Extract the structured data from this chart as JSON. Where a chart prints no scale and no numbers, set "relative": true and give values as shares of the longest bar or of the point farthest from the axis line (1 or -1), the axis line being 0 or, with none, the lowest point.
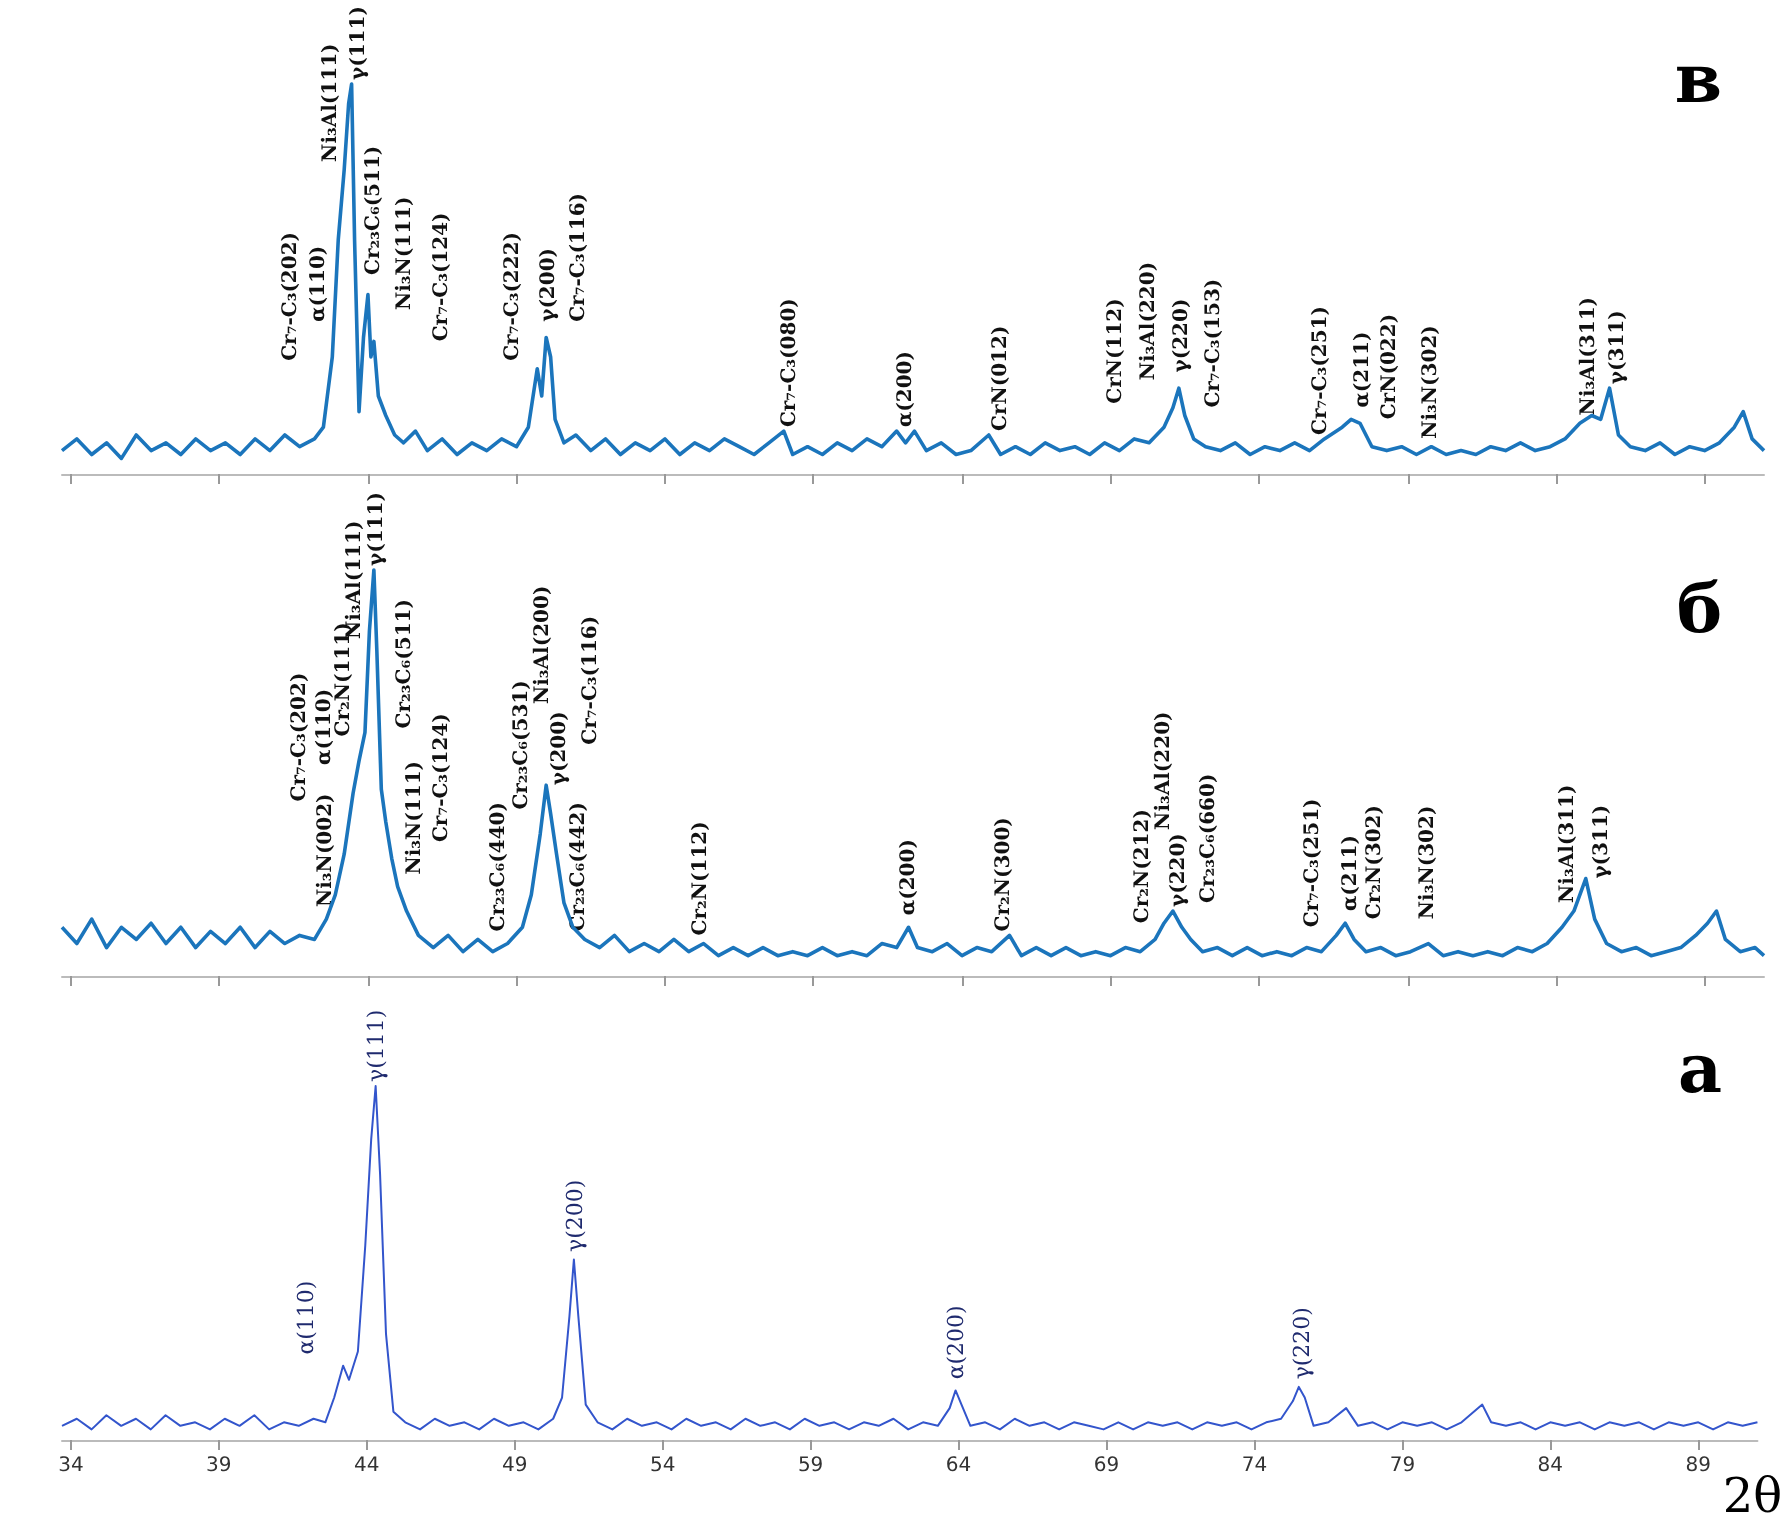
{
  "chart_data": [
    {
      "type": "line",
      "title": "в",
      "relative": true,
      "marker": "none",
      "line_style": "solid",
      "tick_labels": false,
      "xlim": [
        33.7,
        91
      ],
      "xticks": [
        34,
        39,
        44,
        49,
        54,
        59,
        64,
        69,
        74,
        79,
        84,
        89
      ],
      "series": [
        {
          "color": "#1b75bc",
          "x": [
            33.7,
            34.2,
            34.7,
            35.2,
            35.7,
            36.2,
            36.7,
            37.2,
            37.7,
            38.2,
            38.7,
            39.2,
            39.7,
            40.2,
            40.7,
            41.2,
            41.7,
            42.2,
            42.5,
            42.8,
            43.0,
            43.2,
            43.35,
            43.45,
            43.55,
            43.7,
            43.85,
            44.0,
            44.1,
            44.2,
            44.35,
            44.6,
            44.9,
            45.2,
            45.6,
            46.0,
            46.5,
            47.0,
            47.5,
            48.0,
            48.5,
            49.0,
            49.4,
            49.7,
            49.85,
            50.0,
            50.15,
            50.3,
            50.6,
            51.0,
            51.5,
            52.0,
            52.5,
            53.0,
            53.5,
            54.0,
            54.5,
            55.0,
            55.5,
            56.0,
            56.5,
            57.0,
            57.5,
            58.0,
            58.3,
            58.8,
            59.3,
            59.8,
            60.3,
            60.8,
            61.3,
            61.8,
            62.1,
            62.4,
            62.8,
            63.3,
            63.8,
            64.3,
            64.9,
            65.3,
            65.8,
            66.3,
            66.8,
            67.3,
            67.8,
            68.3,
            68.8,
            69.3,
            69.8,
            70.3,
            70.8,
            71.1,
            71.3,
            71.5,
            71.8,
            72.2,
            72.7,
            73.2,
            73.7,
            74.2,
            74.7,
            75.2,
            75.7,
            76.2,
            76.8,
            77.1,
            77.4,
            77.8,
            78.3,
            78.8,
            79.3,
            79.8,
            80.3,
            80.8,
            81.3,
            81.8,
            82.3,
            82.8,
            83.3,
            83.8,
            84.3,
            84.8,
            85.2,
            85.5,
            85.8,
            86.1,
            86.5,
            87.0,
            87.5,
            88.0,
            88.5,
            89.0,
            89.5,
            90.0,
            90.3,
            90.6,
            91.0
          ],
          "values": [
            0.06,
            0.09,
            0.05,
            0.08,
            0.04,
            0.1,
            0.06,
            0.08,
            0.05,
            0.09,
            0.06,
            0.08,
            0.05,
            0.09,
            0.06,
            0.1,
            0.07,
            0.09,
            0.12,
            0.3,
            0.6,
            0.78,
            0.95,
            1.0,
            0.6,
            0.16,
            0.35,
            0.46,
            0.3,
            0.34,
            0.2,
            0.15,
            0.1,
            0.08,
            0.11,
            0.06,
            0.09,
            0.05,
            0.08,
            0.06,
            0.09,
            0.07,
            0.12,
            0.27,
            0.2,
            0.35,
            0.3,
            0.14,
            0.08,
            0.1,
            0.06,
            0.09,
            0.05,
            0.08,
            0.06,
            0.09,
            0.05,
            0.08,
            0.06,
            0.09,
            0.07,
            0.05,
            0.08,
            0.11,
            0.05,
            0.07,
            0.05,
            0.08,
            0.06,
            0.09,
            0.07,
            0.11,
            0.08,
            0.11,
            0.06,
            0.08,
            0.05,
            0.06,
            0.1,
            0.05,
            0.07,
            0.05,
            0.08,
            0.06,
            0.07,
            0.05,
            0.08,
            0.06,
            0.09,
            0.08,
            0.12,
            0.17,
            0.22,
            0.15,
            0.09,
            0.07,
            0.06,
            0.08,
            0.05,
            0.07,
            0.06,
            0.08,
            0.06,
            0.09,
            0.12,
            0.14,
            0.13,
            0.07,
            0.06,
            0.07,
            0.05,
            0.07,
            0.05,
            0.06,
            0.05,
            0.07,
            0.06,
            0.08,
            0.06,
            0.07,
            0.09,
            0.13,
            0.15,
            0.14,
            0.22,
            0.1,
            0.07,
            0.06,
            0.08,
            0.05,
            0.07,
            0.06,
            0.08,
            0.12,
            0.16,
            0.09,
            0.06
          ]
        }
      ],
      "annotations": [
        "Cr₇-C₃(202)",
        "α(110)",
        "Ni₃Al(111)",
        "γ(111)",
        "Cr₂₃C₆(511)",
        "Ni₃N(111)",
        "Cr₇-C₃(124)",
        "Cr₇-C₃(222)",
        "γ(200)",
        "Cr₇-C₃(116)",
        "Cr₇-C₃(080)",
        "α(200)",
        "CrN(012)",
        "CrN(112)",
        "Ni₃Al(220)",
        "γ(220)",
        "Cr₇-C₃(153)",
        "Cr₇-C₃(251)",
        "α(211)",
        "CrN(022)",
        "Ni₃N(302)",
        "Ni₃Al(311)",
        "γ(311)"
      ]
    },
    {
      "type": "line",
      "title": "б",
      "relative": true,
      "marker": "none",
      "line_style": "solid",
      "tick_labels": false,
      "xlim": [
        33.7,
        91
      ],
      "xticks": [
        34,
        39,
        44,
        49,
        54,
        59,
        64,
        69,
        74,
        79,
        84,
        89
      ],
      "series": [
        {
          "color": "#1b75bc",
          "x": [
            33.7,
            34.2,
            34.7,
            35.2,
            35.7,
            36.2,
            36.7,
            37.2,
            37.7,
            38.2,
            38.7,
            39.2,
            39.7,
            40.2,
            40.7,
            41.2,
            41.7,
            42.2,
            42.6,
            42.9,
            43.2,
            43.5,
            43.7,
            43.9,
            44.05,
            44.2,
            44.3,
            44.45,
            44.6,
            44.8,
            45.0,
            45.3,
            45.7,
            46.2,
            46.7,
            47.2,
            47.7,
            48.2,
            48.7,
            49.2,
            49.5,
            49.8,
            50.0,
            50.15,
            50.35,
            50.6,
            50.9,
            51.3,
            51.8,
            52.3,
            52.8,
            53.3,
            53.8,
            54.3,
            54.8,
            55.3,
            55.8,
            56.3,
            56.8,
            57.3,
            57.8,
            58.3,
            58.8,
            59.3,
            59.8,
            60.3,
            60.8,
            61.3,
            61.8,
            62.2,
            62.5,
            63.0,
            63.5,
            64.0,
            64.5,
            65.0,
            65.6,
            66.0,
            66.5,
            67.0,
            67.5,
            68.0,
            68.5,
            69.0,
            69.5,
            70.0,
            70.5,
            70.8,
            71.1,
            71.4,
            71.7,
            72.1,
            72.6,
            73.1,
            73.6,
            74.1,
            74.6,
            75.1,
            75.6,
            76.1,
            76.6,
            76.9,
            77.2,
            77.6,
            78.1,
            78.6,
            79.1,
            79.7,
            80.2,
            80.7,
            81.2,
            81.7,
            82.2,
            82.7,
            83.2,
            83.7,
            84.2,
            84.6,
            85.0,
            85.3,
            85.7,
            86.2,
            86.7,
            87.2,
            87.7,
            88.2,
            88.7,
            89.1,
            89.4,
            89.7,
            90.2,
            90.7,
            91.0
          ],
          "values": [
            0.12,
            0.08,
            0.14,
            0.07,
            0.12,
            0.09,
            0.13,
            0.08,
            0.12,
            0.07,
            0.11,
            0.08,
            0.12,
            0.07,
            0.11,
            0.08,
            0.1,
            0.09,
            0.14,
            0.2,
            0.3,
            0.45,
            0.53,
            0.6,
            0.85,
            1.0,
            0.8,
            0.46,
            0.38,
            0.29,
            0.22,
            0.16,
            0.1,
            0.07,
            0.1,
            0.06,
            0.09,
            0.06,
            0.08,
            0.12,
            0.2,
            0.35,
            0.47,
            0.4,
            0.3,
            0.18,
            0.12,
            0.09,
            0.07,
            0.1,
            0.06,
            0.08,
            0.06,
            0.09,
            0.06,
            0.08,
            0.05,
            0.07,
            0.05,
            0.07,
            0.05,
            0.06,
            0.05,
            0.07,
            0.05,
            0.06,
            0.05,
            0.08,
            0.07,
            0.12,
            0.07,
            0.06,
            0.08,
            0.05,
            0.07,
            0.06,
            0.1,
            0.05,
            0.07,
            0.05,
            0.07,
            0.05,
            0.06,
            0.05,
            0.07,
            0.06,
            0.09,
            0.13,
            0.16,
            0.12,
            0.09,
            0.06,
            0.07,
            0.05,
            0.07,
            0.05,
            0.06,
            0.05,
            0.07,
            0.06,
            0.1,
            0.13,
            0.09,
            0.06,
            0.07,
            0.05,
            0.06,
            0.08,
            0.05,
            0.06,
            0.05,
            0.06,
            0.05,
            0.07,
            0.06,
            0.08,
            0.12,
            0.16,
            0.24,
            0.14,
            0.08,
            0.06,
            0.07,
            0.05,
            0.06,
            0.07,
            0.1,
            0.13,
            0.16,
            0.09,
            0.06,
            0.07,
            0.05
          ]
        }
      ],
      "annotations": [
        "Ni₃N(002)",
        "Cr₇-C₃(202)",
        "α(110)",
        "Cr₂N(111)",
        "Ni₃Al(111)",
        "γ(111)",
        "Cr₂₃C₆(511)",
        "Ni₃N(111)",
        "Cr₇-C₃(124)",
        "Cr₂₃C₆(440)",
        "Cr₂₃C₆(531)",
        "Ni₃Al(200)",
        "γ(200)",
        "Cr₇-C₃(116)",
        "Cr₂₃C₆(442)",
        "Cr₂N(112)",
        "α(200)",
        "Cr₂N(300)",
        "Cr₂N(212)",
        "Ni₃Al(220)",
        "γ(220)",
        "Cr₂₃C₆(660)",
        "Cr₇-C₃(251)",
        "α(211)",
        "Cr₂N(302)",
        "Ni₃N(302)",
        "Ni₃Al(311)",
        "γ(311)"
      ]
    },
    {
      "type": "line",
      "title": "а",
      "xlabel": "2θ",
      "relative": true,
      "marker": "none",
      "line_style": "solid",
      "tick_labels": "x",
      "xlim": [
        33.7,
        91
      ],
      "xticks": [
        34,
        39,
        44,
        49,
        54,
        59,
        64,
        69,
        74,
        79,
        84,
        89
      ],
      "series": [
        {
          "color": "#3355cc",
          "x": [
            33.7,
            34.2,
            34.7,
            35.2,
            35.7,
            36.2,
            36.7,
            37.2,
            37.7,
            38.2,
            38.7,
            39.2,
            39.7,
            40.2,
            40.7,
            41.2,
            41.7,
            42.2,
            42.6,
            42.9,
            43.2,
            43.4,
            43.7,
            43.95,
            44.15,
            44.3,
            44.45,
            44.65,
            44.9,
            45.3,
            45.8,
            46.3,
            46.8,
            47.3,
            47.8,
            48.3,
            48.8,
            49.3,
            49.8,
            50.3,
            50.6,
            50.85,
            51.0,
            51.15,
            51.4,
            51.8,
            52.3,
            52.8,
            53.3,
            53.8,
            54.3,
            54.8,
            55.3,
            55.8,
            56.3,
            56.8,
            57.3,
            57.8,
            58.3,
            58.8,
            59.3,
            59.8,
            60.3,
            60.8,
            61.3,
            61.8,
            62.3,
            62.8,
            63.3,
            63.7,
            63.9,
            64.1,
            64.4,
            64.9,
            65.4,
            65.9,
            66.4,
            66.9,
            67.4,
            67.9,
            68.4,
            68.9,
            69.4,
            69.9,
            70.4,
            70.9,
            71.4,
            71.9,
            72.4,
            72.9,
            73.4,
            73.9,
            74.4,
            74.9,
            75.3,
            75.5,
            75.7,
            76.0,
            76.5,
            77.1,
            77.5,
            78.0,
            78.5,
            79.0,
            79.5,
            80.0,
            80.5,
            81.0,
            81.7,
            82.0,
            82.5,
            83.0,
            83.5,
            84.0,
            84.5,
            85.0,
            85.5,
            86.0,
            86.5,
            87.0,
            87.5,
            88.0,
            88.5,
            89.0,
            89.5,
            90.0,
            90.5,
            91.0
          ],
          "values": [
            0.04,
            0.06,
            0.03,
            0.07,
            0.04,
            0.06,
            0.03,
            0.07,
            0.04,
            0.05,
            0.03,
            0.06,
            0.04,
            0.07,
            0.03,
            0.05,
            0.04,
            0.06,
            0.05,
            0.12,
            0.21,
            0.17,
            0.25,
            0.55,
            0.85,
            1.0,
            0.75,
            0.3,
            0.08,
            0.05,
            0.03,
            0.06,
            0.04,
            0.05,
            0.03,
            0.06,
            0.04,
            0.05,
            0.03,
            0.06,
            0.12,
            0.35,
            0.51,
            0.35,
            0.1,
            0.05,
            0.03,
            0.06,
            0.04,
            0.05,
            0.03,
            0.06,
            0.04,
            0.05,
            0.03,
            0.06,
            0.04,
            0.05,
            0.03,
            0.06,
            0.04,
            0.05,
            0.03,
            0.05,
            0.04,
            0.06,
            0.03,
            0.05,
            0.04,
            0.09,
            0.14,
            0.1,
            0.04,
            0.05,
            0.03,
            0.06,
            0.04,
            0.05,
            0.03,
            0.05,
            0.04,
            0.03,
            0.05,
            0.03,
            0.05,
            0.04,
            0.05,
            0.03,
            0.05,
            0.04,
            0.05,
            0.03,
            0.05,
            0.06,
            0.11,
            0.15,
            0.12,
            0.04,
            0.05,
            0.09,
            0.04,
            0.05,
            0.03,
            0.05,
            0.04,
            0.05,
            0.03,
            0.05,
            0.1,
            0.05,
            0.04,
            0.05,
            0.03,
            0.05,
            0.04,
            0.05,
            0.03,
            0.05,
            0.04,
            0.05,
            0.03,
            0.05,
            0.04,
            0.05,
            0.03,
            0.05,
            0.04,
            0.05
          ]
        }
      ],
      "annotations": [
        "α(110)",
        "γ(111)",
        "γ(200)",
        "α(200)",
        "γ(220)"
      ]
    }
  ]
}
